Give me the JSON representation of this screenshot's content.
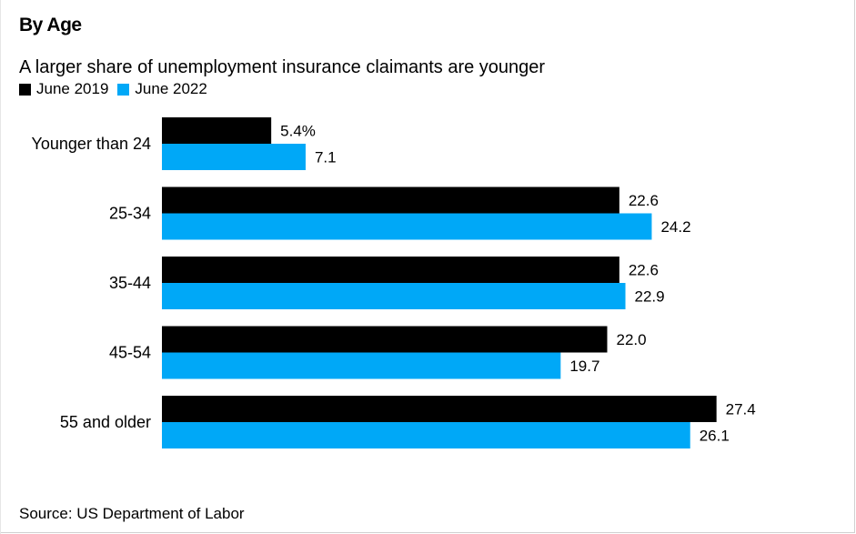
{
  "header": {
    "title": "By Age",
    "subtitle": "A larger share of unemployment insurance claimants are younger"
  },
  "legend": [
    {
      "label": "June 2019",
      "color": "#000000"
    },
    {
      "label": "June 2022",
      "color": "#00A8F7"
    }
  ],
  "footer": {
    "source": "Source: US Department of Labor"
  },
  "chart_data": {
    "type": "bar",
    "orientation": "horizontal",
    "categories": [
      "Younger than 24",
      "25-34",
      "35-44",
      "45-54",
      "55 and older"
    ],
    "series": [
      {
        "name": "June 2019",
        "color": "#000000",
        "values": [
          5.4,
          22.6,
          22.6,
          22.0,
          27.4
        ],
        "labels": [
          "5.4%",
          "22.6",
          "22.6",
          "22.0",
          "27.4"
        ]
      },
      {
        "name": "June 2022",
        "color": "#00A8F7",
        "values": [
          7.1,
          24.2,
          22.9,
          19.7,
          26.1
        ],
        "labels": [
          "7.1",
          "24.2",
          "22.9",
          "19.7",
          "26.1"
        ]
      }
    ],
    "xlim": [
      0,
      35
    ],
    "grid": false,
    "legend_position": "top-left"
  }
}
